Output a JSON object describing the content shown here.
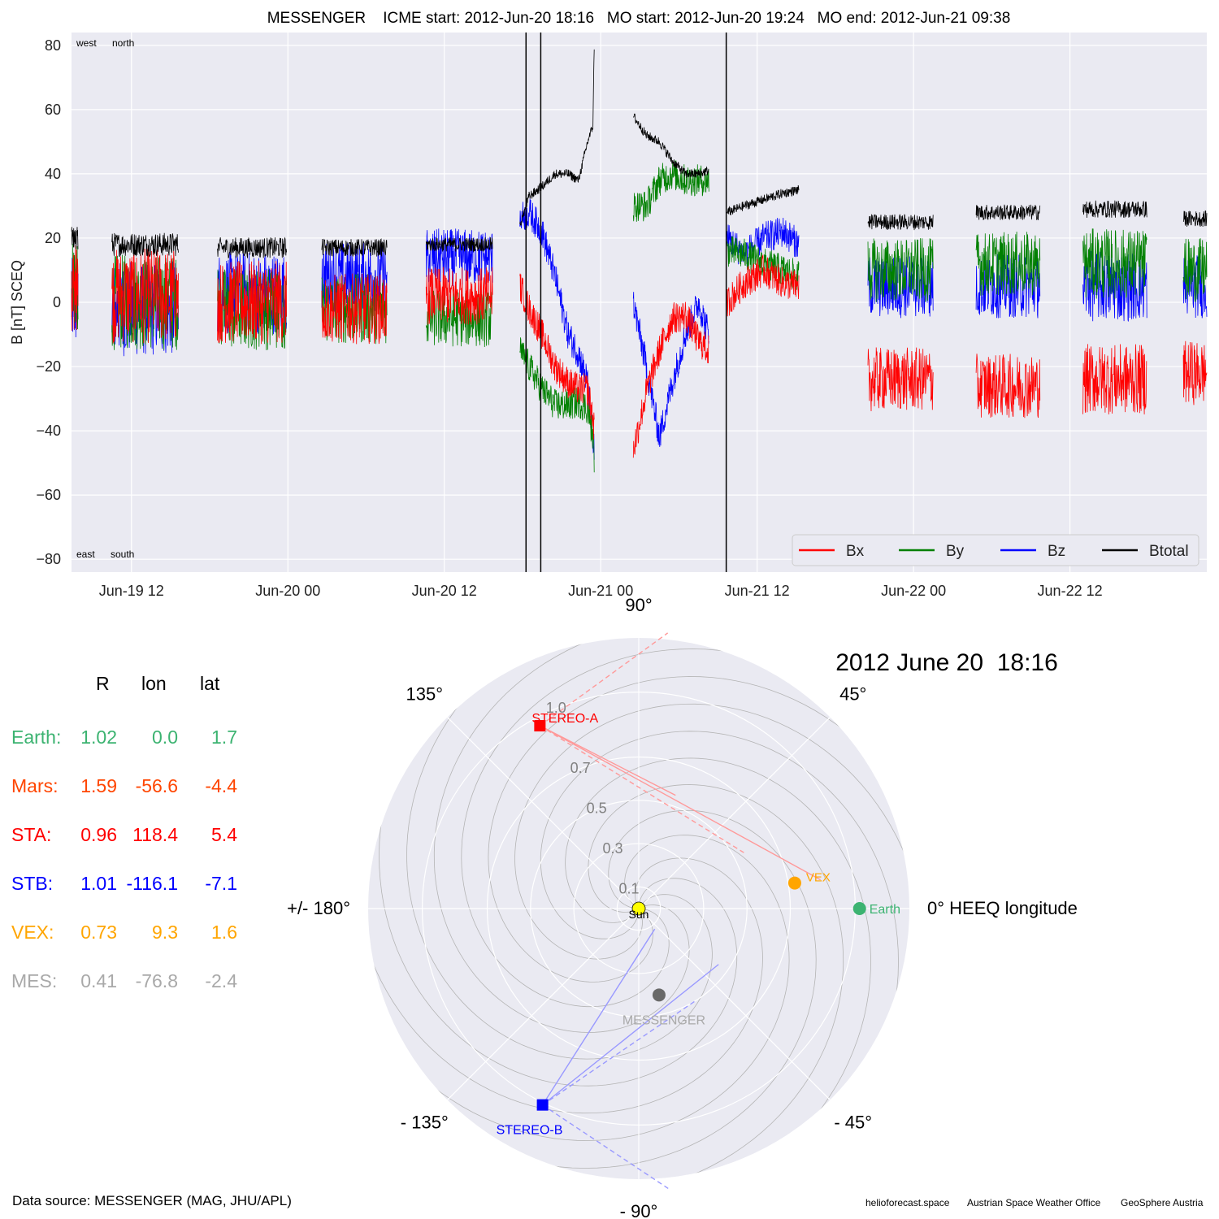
{
  "figure": {
    "title": "MESSENGER    ICME start: 2012-Jun-20 18:16   MO start: 2012-Jun-20 19:24   MO end: 2012-Jun-21 09:38",
    "corner_labels": {
      "top_left": "west",
      "top_right": "north",
      "bottom_left": "east",
      "bottom_right": "south"
    },
    "data_source": "Data source: MESSENGER (MAG, JHU/APL)",
    "credits": [
      "helioforecast.space",
      "Austrian Space Weather Office",
      "GeoSphere Austria"
    ]
  },
  "chart_data": [
    {
      "type": "line",
      "title": "MESSENGER    ICME start: 2012-Jun-20 18:16   MO start: 2012-Jun-20 19:24   MO end: 2012-Jun-21 09:38",
      "ylabel": "B [nT] SCEQ",
      "xlabel": "",
      "x_unit": "hours since 2012-06-19 00:00",
      "xlim": [
        7.4,
        94.5
      ],
      "ylim": [
        -84,
        84
      ],
      "x_ticks": [
        {
          "label": "Jun-19 12",
          "x": 12
        },
        {
          "label": "Jun-20 00",
          "x": 24
        },
        {
          "label": "Jun-20 12",
          "x": 36
        },
        {
          "label": "Jun-21 00",
          "x": 48
        },
        {
          "label": "Jun-21 12",
          "x": 60
        },
        {
          "label": "Jun-22 00",
          "x": 72
        },
        {
          "label": "Jun-22 12",
          "x": 84
        }
      ],
      "y_ticks": [
        -80,
        -60,
        -40,
        -20,
        0,
        20,
        40,
        60,
        80
      ],
      "grid": true,
      "legend": {
        "placement": "bottom-right",
        "columns": 4
      },
      "vlines": [
        {
          "name": "ICME start",
          "time": "2012-Jun-20 18:16",
          "x": 42.27
        },
        {
          "name": "MO start",
          "time": "2012-Jun-20 19:24",
          "x": 43.4
        },
        {
          "name": "MO end",
          "time": "2012-Jun-21 09:38",
          "x": 57.63
        }
      ],
      "series": [
        {
          "name": "Bx",
          "color": "#ff0000"
        },
        {
          "name": "By",
          "color": "#008000"
        },
        {
          "name": "Bz",
          "color": "#0000ff"
        },
        {
          "name": "Btotal",
          "color": "#000000"
        }
      ],
      "segments": [
        {
          "t0": 7.4,
          "t1": 7.9,
          "btot": 20,
          "bx": 5,
          "by": 5,
          "bz": 0,
          "amp": 14
        },
        {
          "t0": 10.5,
          "t1": 15.6,
          "btot": 18,
          "bx": 2,
          "by": 0,
          "bz": -2,
          "amp": 15
        },
        {
          "t0": 18.6,
          "t1": 23.9,
          "btot": 17,
          "bx": 0,
          "by": -2,
          "bz": 3,
          "amp": 13
        },
        {
          "t0": 26.6,
          "t1": 31.6,
          "btot": 17,
          "bx": -2,
          "by": -2,
          "bz": 8,
          "amp": 11
        },
        {
          "t0": 34.6,
          "t1": 39.7,
          "btot": 18,
          "bx": 2,
          "by": -5,
          "bz": 14,
          "amp": 9
        },
        {
          "t0": 68.5,
          "t1": 73.5,
          "btot": 25,
          "bx": -24,
          "by": 10,
          "bz": 5,
          "amp": 10
        },
        {
          "t0": 76.8,
          "t1": 81.7,
          "btot": 28,
          "bx": -26,
          "by": 12,
          "bz": 5,
          "amp": 10
        },
        {
          "t0": 85.0,
          "t1": 89.9,
          "btot": 29,
          "bx": -24,
          "by": 12,
          "bz": 5,
          "amp": 11
        },
        {
          "t0": 92.7,
          "t1": 94.5,
          "btot": 26,
          "bx": -22,
          "by": 10,
          "bz": 5,
          "amp": 10
        }
      ],
      "sheath_block": [
        {
          "t": 41.8,
          "btot": 24,
          "bx": 5,
          "by": -15,
          "bz": 26
        },
        {
          "t": 42.5,
          "btot": 33,
          "bx": -2,
          "by": -20,
          "bz": 28
        },
        {
          "t": 43.5,
          "btot": 36,
          "bx": -10,
          "by": -27,
          "bz": 22
        },
        {
          "t": 44.5,
          "btot": 40,
          "bx": -20,
          "by": -32,
          "bz": 8
        },
        {
          "t": 45.5,
          "btot": 40,
          "bx": -25,
          "by": -32,
          "bz": -10
        },
        {
          "t": 46.3,
          "btot": 38,
          "bx": -27,
          "by": -31,
          "bz": -16
        },
        {
          "t": 47.0,
          "btot": 50,
          "bx": -27,
          "by": -33,
          "bz": -25
        },
        {
          "t": 47.4,
          "btot": 55,
          "bx": -36,
          "by": -42,
          "bz": -44
        },
        {
          "t": 47.5,
          "btot": 80,
          "bx": -40,
          "by": -48,
          "bz": -46
        }
      ],
      "mo_block": [
        {
          "t": 50.5,
          "btot": 58,
          "bx": -46,
          "by": 30,
          "bz": 0
        },
        {
          "t": 51.5,
          "btot": 52,
          "bx": -28,
          "by": 30,
          "bz": -20
        },
        {
          "t": 52.5,
          "btot": 50,
          "bx": -15,
          "by": 38,
          "bz": -42
        },
        {
          "t": 53.5,
          "btot": 44,
          "bx": -5,
          "by": 40,
          "bz": -25
        },
        {
          "t": 54.5,
          "btot": 40,
          "bx": -4,
          "by": 38,
          "bz": -10
        },
        {
          "t": 55.5,
          "btot": 40,
          "bx": -12,
          "by": 38,
          "bz": 0
        },
        {
          "t": 56.3,
          "btot": 41,
          "bx": -15,
          "by": 38,
          "bz": -10
        }
      ],
      "post_block": [
        {
          "t": 57.7,
          "btot": 28,
          "bx": 0,
          "by": 16,
          "bz": 20
        },
        {
          "t": 59.0,
          "btot": 30,
          "bx": 6,
          "by": 15,
          "bz": 15
        },
        {
          "t": 60.5,
          "btot": 32,
          "bx": 10,
          "by": 12,
          "bz": 20
        },
        {
          "t": 62.0,
          "btot": 34,
          "bx": 6,
          "by": 10,
          "bz": 22
        },
        {
          "t": 63.2,
          "btot": 35,
          "bx": 5,
          "by": 8,
          "bz": 18
        }
      ]
    },
    {
      "type": "scatter",
      "projection": "polar",
      "title": "2012 June 20  18:16",
      "coordinate_system": "0° HEEQ longitude",
      "r_ticks": [
        0.1,
        0.3,
        0.5,
        0.7,
        1.0
      ],
      "r_tick_labels": [
        "0.1",
        "0.3",
        "0.5",
        "0.7",
        "1.0"
      ],
      "angle_labels": [
        {
          "deg": 90,
          "text": "90°"
        },
        {
          "deg": 45,
          "text": "45°"
        },
        {
          "deg": 0,
          "text": "0° HEEQ longitude"
        },
        {
          "deg": -45,
          "text": "- 45°"
        },
        {
          "deg": -90,
          "text": "- 90°"
        },
        {
          "deg": -135,
          "text": "- 135°"
        },
        {
          "deg": 180,
          "text": "+/- 180°"
        },
        {
          "deg": 135,
          "text": "135°"
        }
      ],
      "points": [
        {
          "name": "Sun",
          "r": 0.0,
          "lon": 0.0,
          "color": "#ffff00",
          "marker": "circle"
        },
        {
          "name": "Earth",
          "r": 1.02,
          "lon": 0.0,
          "color": "#3cb371",
          "marker": "circle"
        },
        {
          "name": "VEX",
          "r": 0.73,
          "lon": 9.3,
          "color": "#ffa500",
          "marker": "circle"
        },
        {
          "name": "MESSENGER",
          "r": 0.41,
          "lon": -76.8,
          "color": "#696969",
          "marker": "circle",
          "label_color": "#a9a9a9"
        },
        {
          "name": "STEREO-A",
          "r": 0.96,
          "lon": 118.4,
          "color": "#ff0000",
          "marker": "square"
        },
        {
          "name": "STEREO-B",
          "r": 1.01,
          "lon": -116.1,
          "color": "#0000ff",
          "marker": "square"
        }
      ],
      "fov_lines": [
        {
          "from": "STEREO-A",
          "color": "#ff9999",
          "style": "solid",
          "end_r": 0.85,
          "end_lon": 9.0
        },
        {
          "from": "STEREO-A",
          "color": "#ff9999",
          "style": "solid",
          "end_r": 0.55,
          "end_lon": 72.0
        },
        {
          "from": "STEREO-A",
          "color": "#ff9999",
          "style": "dashed",
          "end_r": 0.55,
          "end_lon": 28.0
        },
        {
          "from": "STEREO-A",
          "color": "#ff9999",
          "style": "dashed",
          "end_r": 1.28,
          "end_lon": 84.0
        },
        {
          "from": "STEREO-B",
          "color": "#9999ff",
          "style": "solid",
          "end_r": 0.12,
          "end_lon": -52.0
        },
        {
          "from": "STEREO-B",
          "color": "#9999ff",
          "style": "solid",
          "end_r": 0.45,
          "end_lon": -35.0
        },
        {
          "from": "STEREO-B",
          "color": "#9999ff",
          "style": "dashed",
          "end_r": 0.5,
          "end_lon": -58.0
        },
        {
          "from": "STEREO-B",
          "color": "#9999ff",
          "style": "dashed",
          "end_r": 1.3,
          "end_lon": -84.0
        }
      ]
    }
  ],
  "positions_table": {
    "headers": [
      "R",
      "lon",
      "lat"
    ],
    "rows": [
      {
        "label": "Earth:",
        "R": "1.02",
        "lon": "0.0",
        "lat": "1.7",
        "color": "#3cb371"
      },
      {
        "label": "Mars:",
        "R": "1.59",
        "lon": "-56.6",
        "lat": "-4.4",
        "color": "#ff4500"
      },
      {
        "label": "STA:",
        "R": "0.96",
        "lon": "118.4",
        "lat": "5.4",
        "color": "#ff0000"
      },
      {
        "label": "STB:",
        "R": "1.01",
        "lon": "-116.1",
        "lat": "-7.1",
        "color": "#0000ff"
      },
      {
        "label": "VEX:",
        "R": "0.73",
        "lon": "9.3",
        "lat": "1.6",
        "color": "#ffa500"
      },
      {
        "label": "MES:",
        "R": "0.41",
        "lon": "-76.8",
        "lat": "-2.4",
        "color": "#a9a9a9"
      }
    ]
  }
}
